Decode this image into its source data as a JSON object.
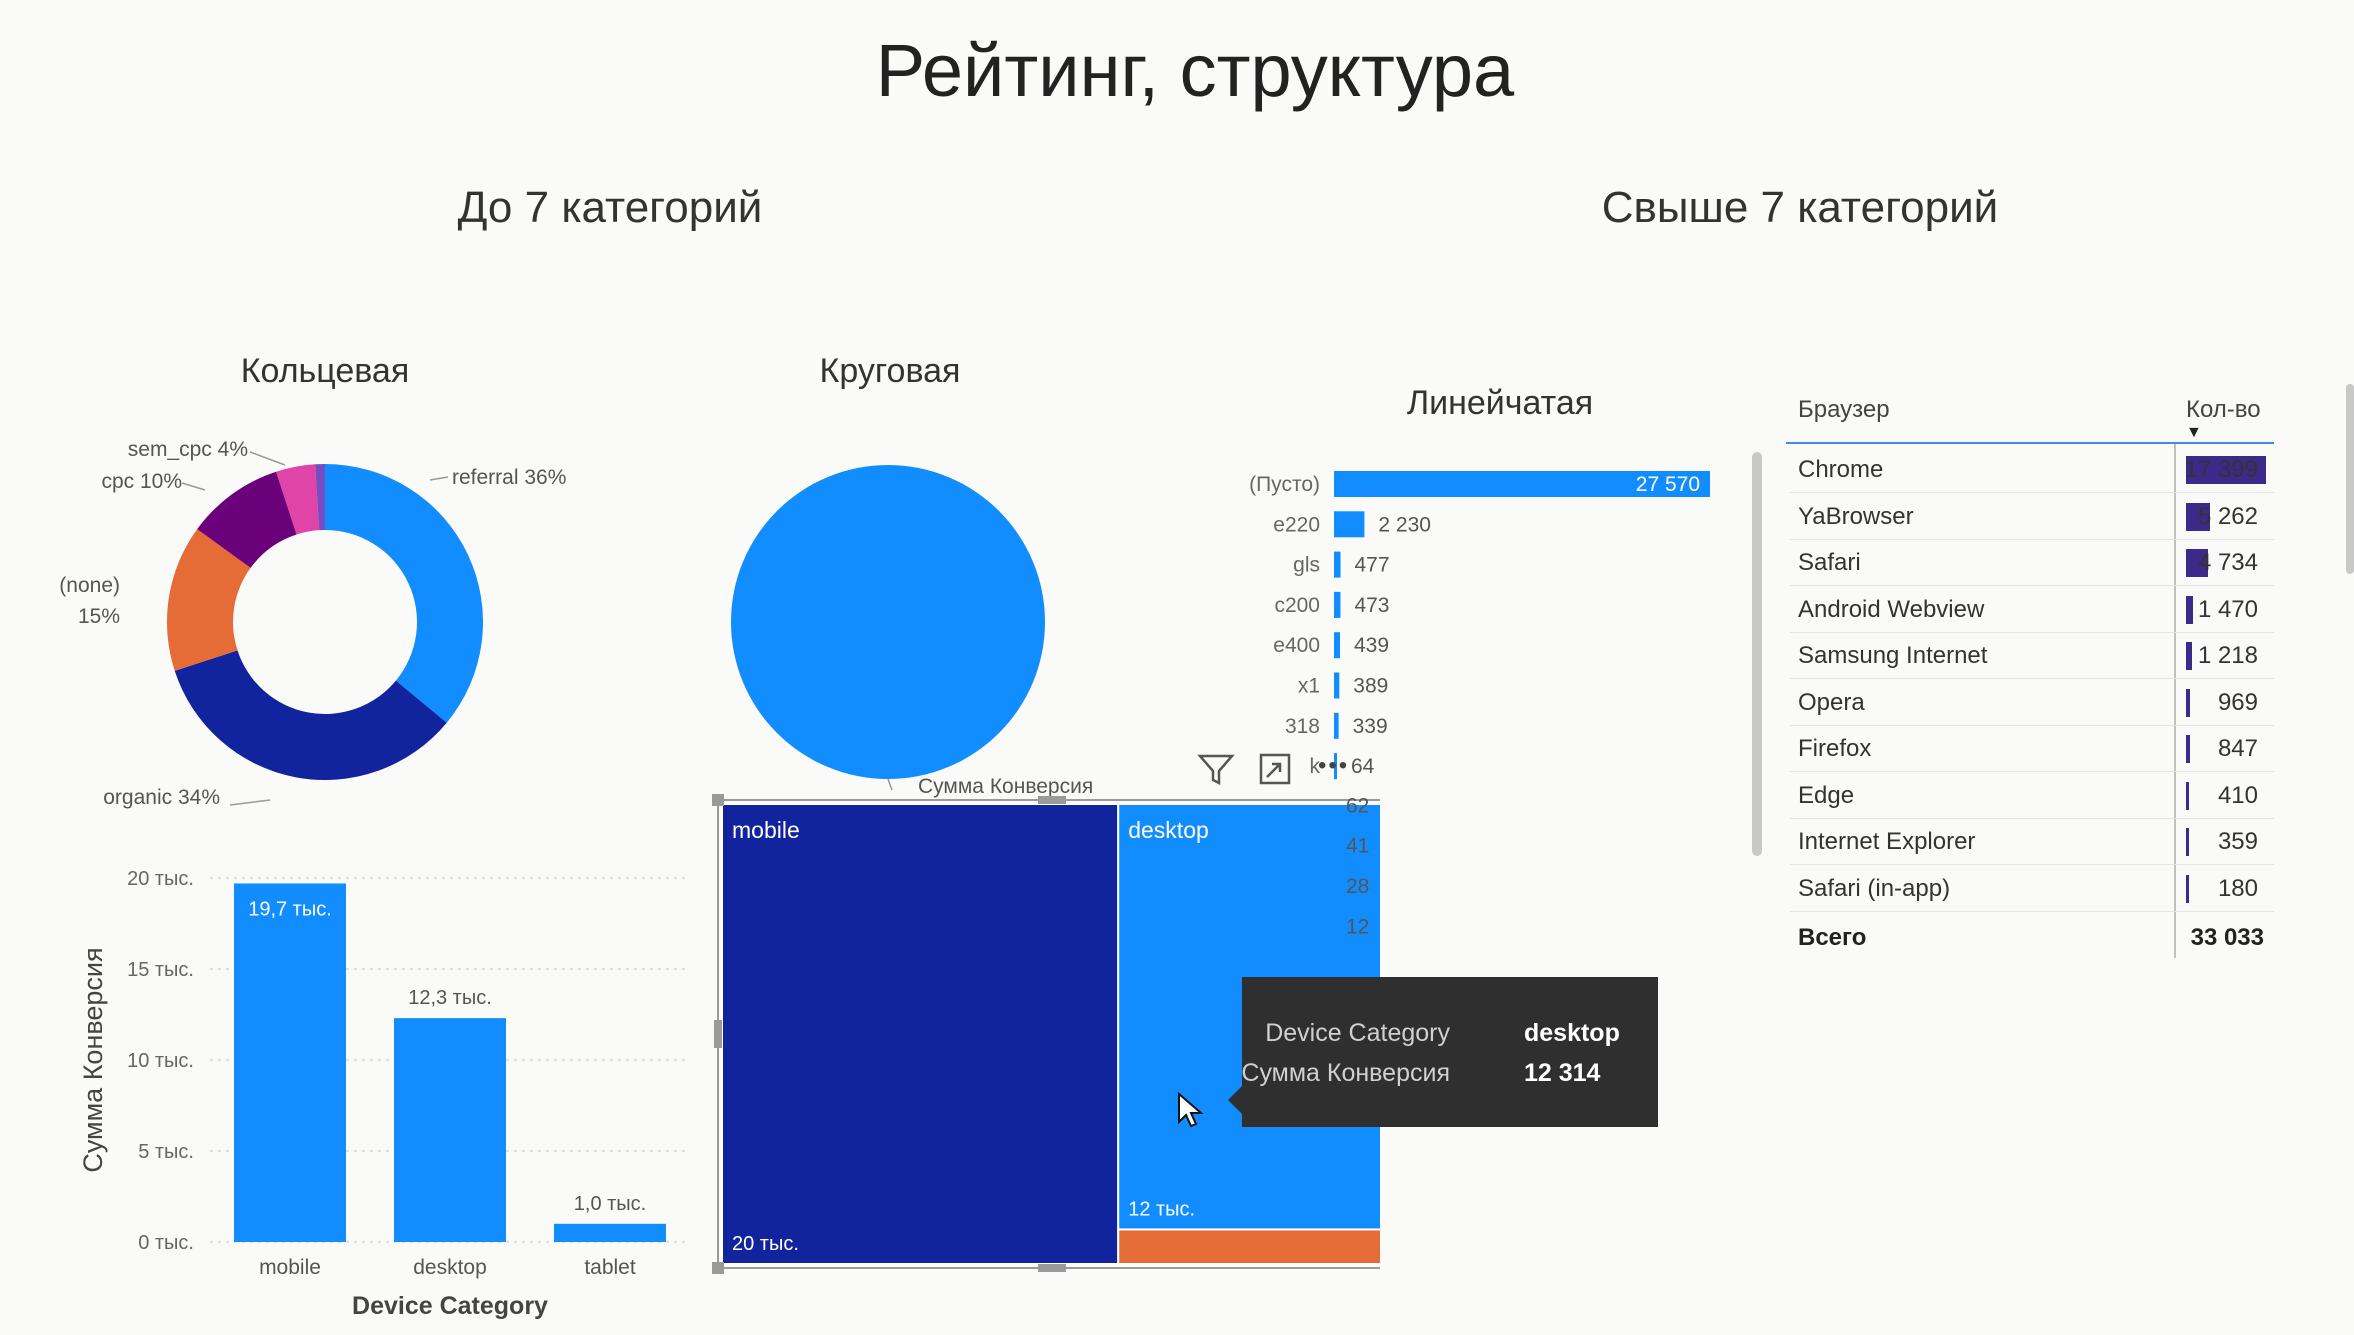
{
  "page": {
    "title": "Рейтинг, структура",
    "section_left": "До 7 категорий",
    "section_right": "Свыше 7 категорий"
  },
  "colors": {
    "light_blue": "#118DFF",
    "dark_blue": "#12239E",
    "orange": "#E66C37",
    "purple": "#6B007B",
    "pink": "#E044A7",
    "dark_purple": "#744EC2",
    "table_bar": "#3b2a8a"
  },
  "chart_data": [
    {
      "type": "pie",
      "subtype": "donut",
      "title": "Кольцевая",
      "slices": [
        {
          "label": "referral 36%",
          "value": 36,
          "color": "#118DFF"
        },
        {
          "label": "organic 34%",
          "value": 34,
          "color": "#12239E"
        },
        {
          "label": "(none) 15%",
          "label_line1": "(none)",
          "label_line2": "15%",
          "value": 15,
          "color": "#E66C37"
        },
        {
          "label": "cpc 10%",
          "value": 10,
          "color": "#6B007B"
        },
        {
          "label": "sem_cpc 4%",
          "value": 4,
          "color": "#E044A7"
        },
        {
          "label": "",
          "value": 1,
          "color": "#744EC2"
        }
      ]
    },
    {
      "type": "pie",
      "title": "Круговая",
      "slices": [
        {
          "label": "",
          "value": 100,
          "color": "#118DFF"
        }
      ],
      "partial_label": "Сумма Конверсия"
    },
    {
      "type": "bar",
      "title": "",
      "xlabel": "Device Category",
      "ylabel": "Сумма Конверсия",
      "categories": [
        "mobile",
        "desktop",
        "tablet"
      ],
      "values": [
        19700,
        12300,
        1000
      ],
      "data_labels": [
        "19,7 тыс.",
        "12,3 тыс.",
        "1,0 тыс."
      ],
      "yticks": [
        "0 тыс.",
        "5 тыс.",
        "10 тыс.",
        "15 тыс.",
        "20 тыс."
      ],
      "ylim": [
        0,
        20000
      ],
      "grid": true
    },
    {
      "type": "treemap",
      "items": [
        {
          "label": "mobile",
          "value": 20000,
          "value_label": "20 тыс.",
          "color": "#12239E"
        },
        {
          "label": "desktop",
          "value": 12314,
          "value_label": "12 тыс.",
          "color": "#118DFF"
        },
        {
          "label": "",
          "value": 1000,
          "value_label": "",
          "color": "#E66C37"
        }
      ]
    },
    {
      "type": "bar",
      "orientation": "horizontal",
      "title": "Линейчатая",
      "categories": [
        "(Пусто)",
        "e220",
        "gls",
        "c200",
        "e400",
        "x1",
        "318",
        "k",
        "",
        "",
        "",
        ""
      ],
      "values": [
        27570,
        2230,
        477,
        473,
        439,
        389,
        339,
        64,
        62,
        41,
        28,
        12
      ],
      "data_labels": [
        "27 570",
        "2 230",
        "477",
        "473",
        "439",
        "389",
        "339",
        "64",
        "62",
        "41",
        "28",
        "12"
      ]
    },
    {
      "type": "table",
      "columns": [
        "Браузер",
        "Кол-во"
      ],
      "rows": [
        {
          "name": "Chrome",
          "value": 17399,
          "label": "17 399"
        },
        {
          "name": "YaBrowser",
          "value": 5262,
          "label": "5 262"
        },
        {
          "name": "Safari",
          "value": 4734,
          "label": "4 734"
        },
        {
          "name": "Android Webview",
          "value": 1470,
          "label": "1 470"
        },
        {
          "name": "Samsung Internet",
          "value": 1218,
          "label": "1 218"
        },
        {
          "name": "Opera",
          "value": 969,
          "label": "969"
        },
        {
          "name": "Firefox",
          "value": 847,
          "label": "847"
        },
        {
          "name": "Edge",
          "value": 410,
          "label": "410"
        },
        {
          "name": "Internet Explorer",
          "value": 359,
          "label": "359"
        },
        {
          "name": "Safari (in-app)",
          "value": 180,
          "label": "180"
        }
      ],
      "total": {
        "name": "Всего",
        "label": "33 033"
      }
    }
  ],
  "tooltip": {
    "k1": "Device Category",
    "v1": "desktop",
    "k2": "Сумма Конверсия",
    "v2": "12 314"
  },
  "icons": [
    "filter-icon",
    "focus-mode-icon",
    "more-options-icon",
    "mouse-cursor-icon"
  ]
}
